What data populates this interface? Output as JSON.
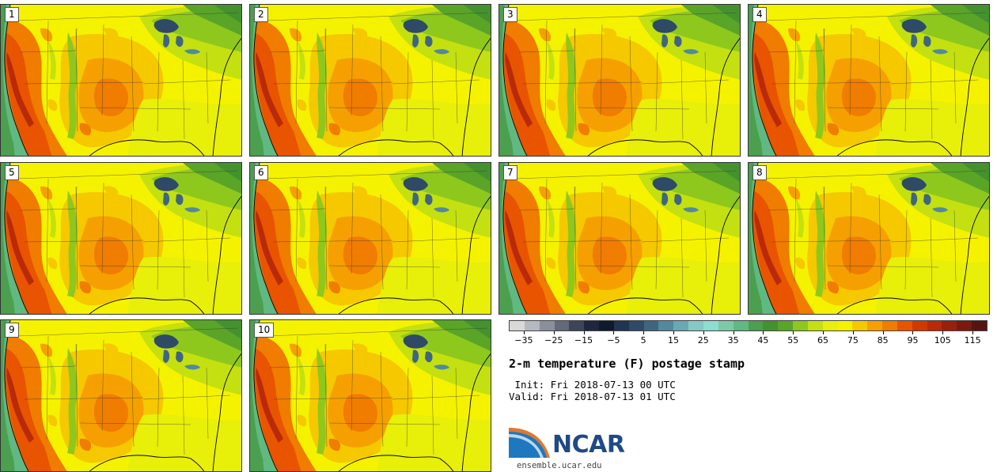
{
  "stamps": [
    {
      "label": "1"
    },
    {
      "label": "2"
    },
    {
      "label": "3"
    },
    {
      "label": "4"
    },
    {
      "label": "5"
    },
    {
      "label": "6"
    },
    {
      "label": "7"
    },
    {
      "label": "8"
    },
    {
      "label": "9"
    },
    {
      "label": "10"
    }
  ],
  "colorbar": {
    "colors": [
      "#d9d9d9",
      "#b5b8bf",
      "#8a8f9c",
      "#636a7c",
      "#3d455a",
      "#1f2740",
      "#0e1a2e",
      "#1f3550",
      "#2e4a66",
      "#3f6680",
      "#52899e",
      "#6aa8b4",
      "#85c9c6",
      "#8fdcd0",
      "#7ccaa6",
      "#60b882",
      "#4c9f4e",
      "#44922e",
      "#5aa428",
      "#8ec81c",
      "#c4e010",
      "#e8ef08",
      "#f5f200",
      "#f5c800",
      "#f5a000",
      "#f07c00",
      "#e85400",
      "#d03a00",
      "#b82a08",
      "#9a200e",
      "#7a1a0e",
      "#561310"
    ],
    "min": -40,
    "max": 120,
    "ticks": [
      -35,
      -25,
      -15,
      -5,
      5,
      15,
      25,
      35,
      45,
      55,
      65,
      75,
      85,
      95,
      105,
      115
    ]
  },
  "title": "2-m temperature (F) postage stamp",
  "init": " Init: Fri 2018-07-13 00 UTC",
  "valid": "Valid: Fri 2018-07-13 01 UTC",
  "logo": {
    "text": "NCAR",
    "color": "#1e4a86"
  },
  "website": "ensemble.ucar.edu"
}
